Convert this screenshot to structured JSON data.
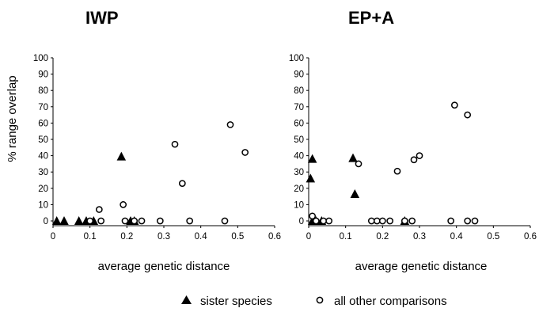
{
  "chart_data": [
    {
      "type": "scatter",
      "title": "IWP",
      "xlabel": "average genetic distance",
      "ylabel": "% range overlap",
      "xlim": [
        0,
        0.6
      ],
      "ylim": [
        0,
        100
      ],
      "xticks": [
        "0",
        "0.1",
        "0.2",
        "0.3",
        "0.4",
        "0.5",
        "0.6"
      ],
      "yticks": [
        "0",
        "10",
        "20",
        "30",
        "40",
        "50",
        "60",
        "70",
        "80",
        "90",
        "100"
      ],
      "grid": false,
      "series": [
        {
          "name": "sister species",
          "marker": "filled-triangle",
          "points": [
            [
              0.01,
              0
            ],
            [
              0.03,
              0
            ],
            [
              0.07,
              0
            ],
            [
              0.09,
              0
            ],
            [
              0.11,
              0
            ],
            [
              0.185,
              39.5
            ],
            [
              0.21,
              0
            ],
            [
              0.22,
              0
            ]
          ]
        },
        {
          "name": "all other comparisons",
          "marker": "open-circle",
          "points": [
            [
              0.1,
              0
            ],
            [
              0.125,
              7
            ],
            [
              0.13,
              0
            ],
            [
              0.19,
              10
            ],
            [
              0.195,
              0
            ],
            [
              0.22,
              0
            ],
            [
              0.24,
              0
            ],
            [
              0.29,
              0
            ],
            [
              0.33,
              47
            ],
            [
              0.35,
              23
            ],
            [
              0.37,
              0
            ],
            [
              0.465,
              0
            ],
            [
              0.48,
              59
            ],
            [
              0.52,
              42
            ]
          ]
        }
      ]
    },
    {
      "type": "scatter",
      "title": "EP+A",
      "xlabel": "average genetic distance",
      "ylabel": "",
      "xlim": [
        0,
        0.6
      ],
      "ylim": [
        0,
        100
      ],
      "xticks": [
        "0",
        "0.1",
        "0.2",
        "0.3",
        "0.4",
        "0.5",
        "0.6"
      ],
      "yticks": [
        "0",
        "10",
        "20",
        "30",
        "40",
        "50",
        "60",
        "70",
        "80",
        "90",
        "100"
      ],
      "grid": false,
      "series": [
        {
          "name": "sister species",
          "marker": "filled-triangle",
          "points": [
            [
              0.005,
              26
            ],
            [
              0.01,
              38
            ],
            [
              0.01,
              0
            ],
            [
              0.02,
              0
            ],
            [
              0.035,
              0
            ],
            [
              0.12,
              38.5
            ],
            [
              0.125,
              16.5
            ],
            [
              0.26,
              0
            ]
          ]
        },
        {
          "name": "all other comparisons",
          "marker": "open-circle",
          "points": [
            [
              0.01,
              3
            ],
            [
              0.02,
              0
            ],
            [
              0.04,
              0
            ],
            [
              0.055,
              0
            ],
            [
              0.135,
              35
            ],
            [
              0.17,
              0
            ],
            [
              0.185,
              0
            ],
            [
              0.2,
              0
            ],
            [
              0.22,
              0
            ],
            [
              0.24,
              30.5
            ],
            [
              0.26,
              0
            ],
            [
              0.28,
              0
            ],
            [
              0.285,
              37.5
            ],
            [
              0.3,
              40
            ],
            [
              0.385,
              0
            ],
            [
              0.395,
              71
            ],
            [
              0.43,
              65
            ],
            [
              0.43,
              0
            ],
            [
              0.45,
              0
            ]
          ]
        }
      ]
    }
  ],
  "legend": {
    "position": "bottom-center",
    "items": [
      {
        "label": "sister species",
        "marker": "filled-triangle"
      },
      {
        "label": "all other comparisons",
        "marker": "open-circle"
      }
    ]
  }
}
